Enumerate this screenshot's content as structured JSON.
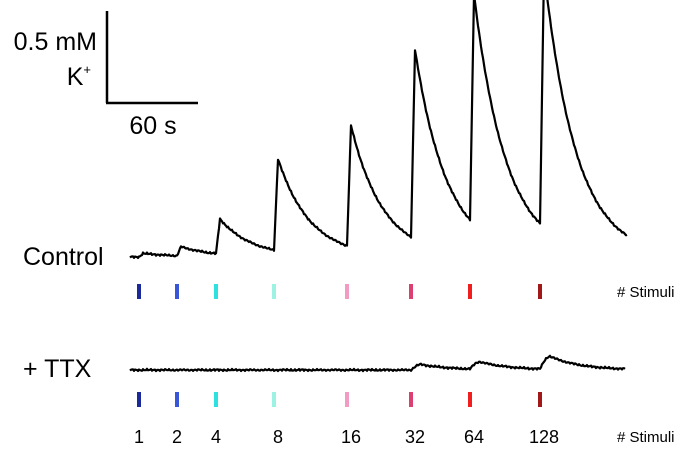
{
  "chart_data": {
    "type": "line",
    "scale_bar": {
      "y_label": "0.5 mM",
      "y_unit": "K",
      "y_unit_sup": "+",
      "y_value_mM": 0.5,
      "x_label": "60 s",
      "x_value_s": 60
    },
    "stimuli_label": "# Stimuli",
    "stimuli": [
      {
        "label": "1",
        "count": 1,
        "color": "#1a2a9a"
      },
      {
        "label": "2",
        "count": 2,
        "color": "#3a56d8"
      },
      {
        "label": "4",
        "count": 4,
        "color": "#2ee0e0"
      },
      {
        "label": "8",
        "count": 8,
        "color": "#9ef2e4"
      },
      {
        "label": "16",
        "count": 16,
        "color": "#f29cc4"
      },
      {
        "label": "32",
        "count": 32,
        "color": "#dc4070"
      },
      {
        "label": "64",
        "count": 64,
        "color": "#f01e1e"
      },
      {
        "label": "128",
        "count": 128,
        "color": "#a01818"
      }
    ],
    "series": [
      {
        "name": "Control",
        "responses": [
          {
            "stimuli": 1,
            "peak_mM": 0.02
          },
          {
            "stimuli": 2,
            "peak_mM": 0.05
          },
          {
            "stimuli": 4,
            "peak_mM": 0.19
          },
          {
            "stimuli": 8,
            "peak_mM": 0.5
          },
          {
            "stimuli": 16,
            "peak_mM": 0.66
          },
          {
            "stimuli": 32,
            "peak_mM": 1.03
          },
          {
            "stimuli": 64,
            "peak_mM": 1.25
          },
          {
            "stimuli": 128,
            "peak_mM": 1.4
          }
        ]
      },
      {
        "name": "+ TTX",
        "responses": [
          {
            "stimuli": 1,
            "peak_mM": 0.0
          },
          {
            "stimuli": 2,
            "peak_mM": 0.0
          },
          {
            "stimuli": 4,
            "peak_mM": 0.0
          },
          {
            "stimuli": 8,
            "peak_mM": 0.0
          },
          {
            "stimuli": 16,
            "peak_mM": 0.0
          },
          {
            "stimuli": 32,
            "peak_mM": 0.03
          },
          {
            "stimuli": 64,
            "peak_mM": 0.04
          },
          {
            "stimuli": 128,
            "peak_mM": 0.07
          }
        ]
      }
    ]
  }
}
